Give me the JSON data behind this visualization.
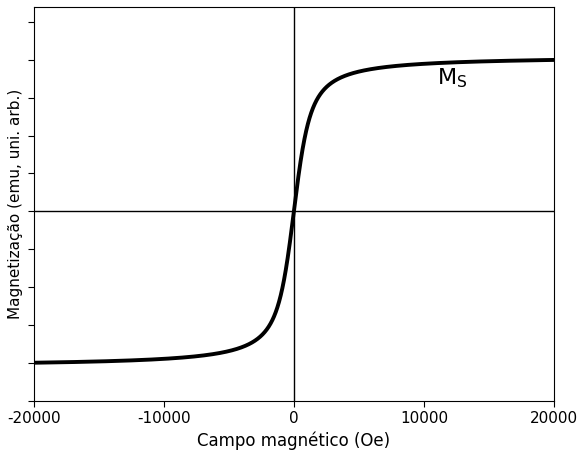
{
  "xlabel": "Campo magnético (Oe)",
  "ylabel": "Magnetização (emu, uni. arb.)",
  "xlim": [
    -20000,
    20000
  ],
  "ylim": [
    -1.25,
    1.35
  ],
  "x_ticks": [
    -20000,
    -10000,
    0,
    10000,
    20000
  ],
  "curve_color": "#000000",
  "curve_linewidth": 2.8,
  "langevin_scale": 500,
  "ms_x": 11000,
  "ms_y": 0.88,
  "crosshair_color": "#000000",
  "crosshair_linewidth": 1.0,
  "background_color": "#ffffff",
  "xlabel_fontsize": 12,
  "ylabel_fontsize": 11,
  "tick_fontsize": 11,
  "ms_fontsize": 16
}
